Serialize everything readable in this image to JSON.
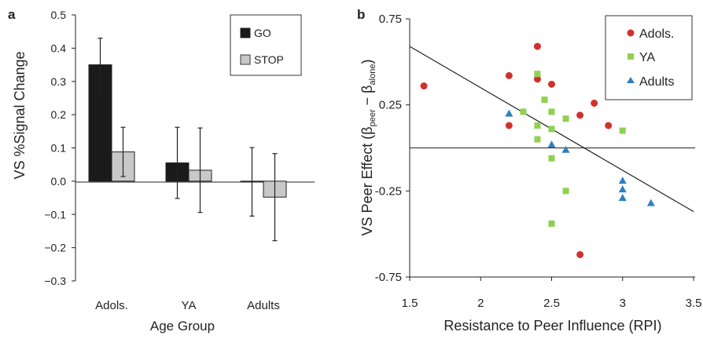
{
  "chart_data": [
    {
      "panel_label": "a",
      "type": "bar",
      "categories": [
        "Adols.",
        "YA",
        "Adults"
      ],
      "series": [
        {
          "name": "GO",
          "color": "#1a1a1a",
          "values": [
            0.35,
            0.055,
            -0.002
          ],
          "errors": [
            0.08,
            0.107,
            0.103
          ]
        },
        {
          "name": "STOP",
          "color": "#c8c8c8",
          "values": [
            0.088,
            0.033,
            -0.048
          ],
          "errors": [
            0.074,
            0.127,
            0.131
          ]
        }
      ],
      "xlabel": "Age Group",
      "ylabel": "VS %Signal Change",
      "ylim": [
        -0.3,
        0.5
      ],
      "yticks": [
        "0.5",
        "0.4",
        "0.3",
        "0.2",
        "0.1",
        "0.0",
        "−0.1",
        "−0.2",
        "−0.3"
      ],
      "ytick_values": [
        0.5,
        0.4,
        0.3,
        0.2,
        0.1,
        0.0,
        -0.1,
        -0.2,
        -0.3
      ],
      "legend_position": "top-right",
      "grid": false
    },
    {
      "panel_label": "b",
      "type": "scatter",
      "xlabel": "Resistance to Peer Influence (RPI)",
      "ylabel": {
        "prefix": "VS Peer Effect (β",
        "sub1": "peer",
        "mid": " − β",
        "sub2": "alone",
        "suffix": ")"
      },
      "xlim": [
        1.5,
        3.5
      ],
      "ylim": [
        -0.75,
        0.75
      ],
      "xticks": [
        "1.5",
        "2",
        "2.5",
        "3",
        "3.5"
      ],
      "xtick_values": [
        1.5,
        2,
        2.5,
        3,
        3.5
      ],
      "yticks": [
        "0.75",
        "0.25",
        "-0.25",
        "-0.75"
      ],
      "ytick_values": [
        0.75,
        0.25,
        -0.25,
        -0.75
      ],
      "zero_line": 0,
      "fit_line": {
        "x": [
          1.5,
          3.5
        ],
        "y": [
          0.59,
          -0.37
        ]
      },
      "legend_position": "top-right",
      "grid": false,
      "series": [
        {
          "name": "Adols.",
          "marker": "circle",
          "color": "#d0312d",
          "points": [
            [
              1.6,
              0.36
            ],
            [
              2.2,
              0.42
            ],
            [
              2.2,
              0.13
            ],
            [
              2.4,
              0.59
            ],
            [
              2.4,
              0.4
            ],
            [
              2.5,
              0.37
            ],
            [
              2.7,
              0.19
            ],
            [
              2.8,
              0.26
            ],
            [
              2.9,
              0.13
            ],
            [
              2.7,
              -0.62
            ]
          ]
        },
        {
          "name": "YA",
          "marker": "square",
          "color": "#8fd14f",
          "points": [
            [
              2.4,
              0.43
            ],
            [
              2.45,
              0.28
            ],
            [
              2.5,
              0.21
            ],
            [
              2.3,
              0.21
            ],
            [
              2.4,
              0.13
            ],
            [
              2.5,
              0.11
            ],
            [
              2.6,
              0.17
            ],
            [
              2.4,
              0.05
            ],
            [
              3.0,
              0.1
            ],
            [
              2.5,
              -0.06
            ],
            [
              2.6,
              -0.25
            ],
            [
              2.5,
              -0.44
            ]
          ]
        },
        {
          "name": "Adults",
          "marker": "triangle",
          "color": "#2f7fbf",
          "points": [
            [
              2.2,
              0.2
            ],
            [
              2.5,
              0.02
            ],
            [
              2.6,
              -0.01
            ],
            [
              3.0,
              -0.19
            ],
            [
              3.0,
              -0.24
            ],
            [
              3.0,
              -0.29
            ],
            [
              3.2,
              -0.32
            ]
          ]
        }
      ]
    }
  ]
}
